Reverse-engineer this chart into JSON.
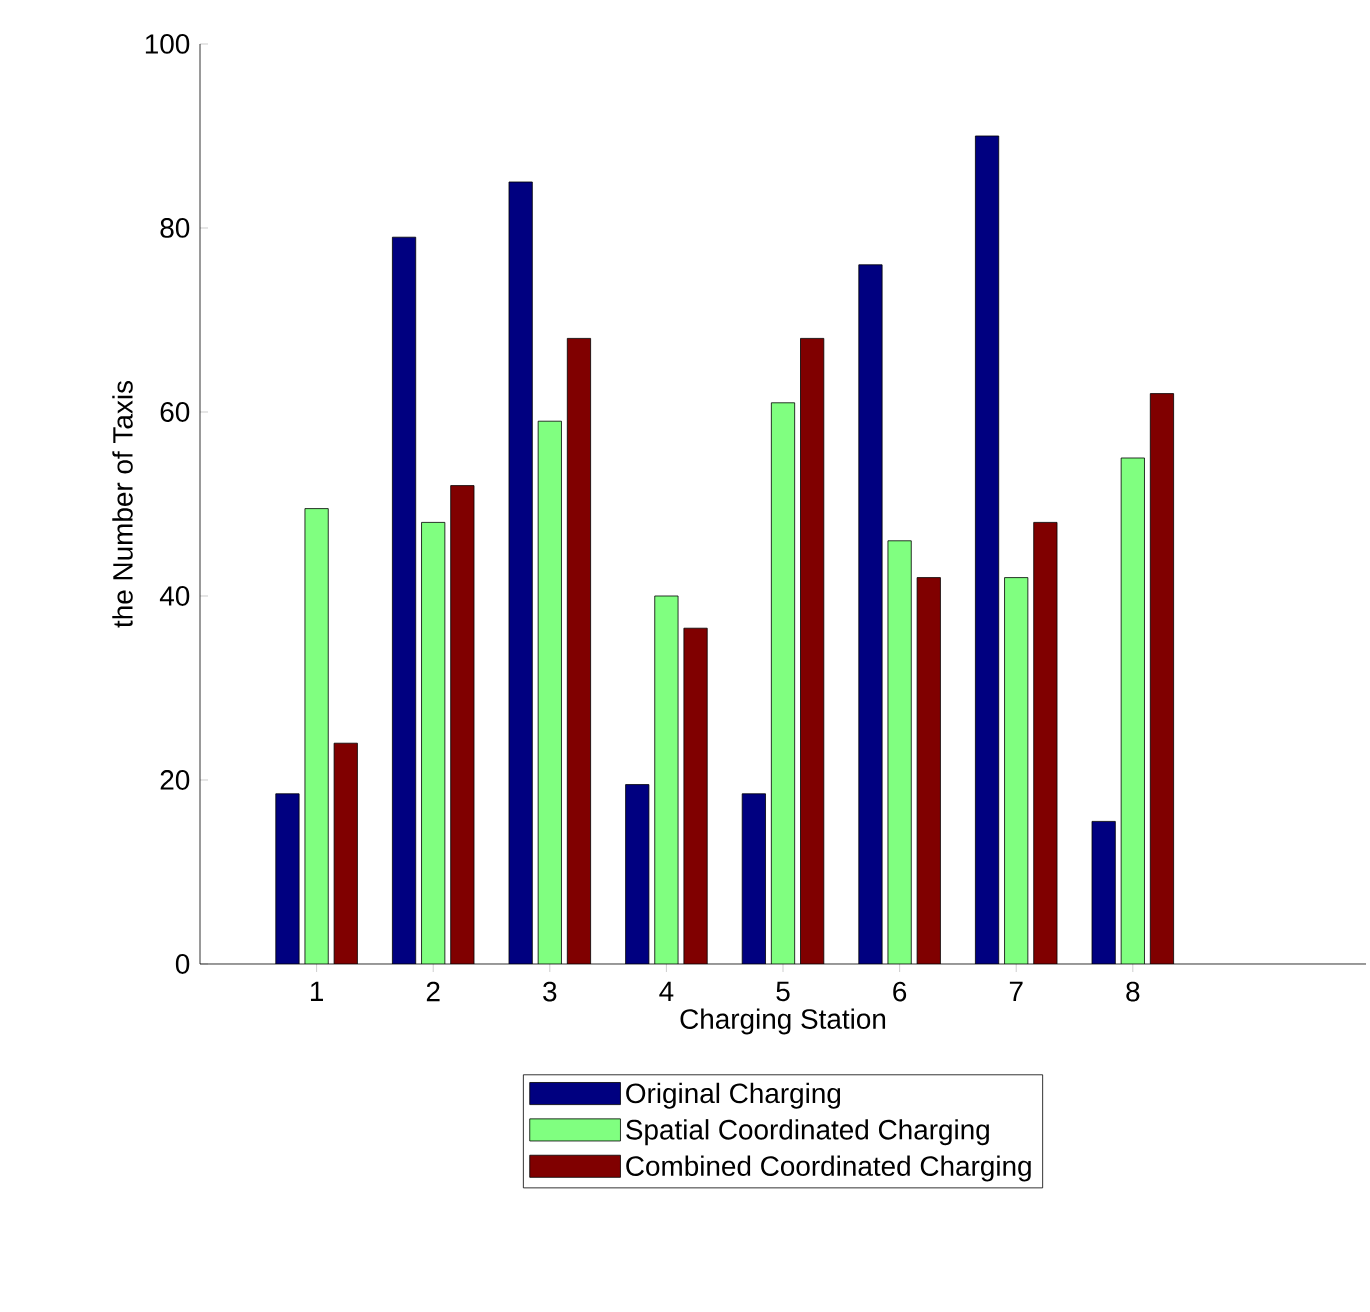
{
  "chart_data": {
    "type": "bar",
    "xlabel": "Charging Station",
    "ylabel": "the Number of Taxis",
    "x": [
      1,
      2,
      3,
      4,
      5,
      6,
      7,
      8
    ],
    "xlim": [
      0,
      10
    ],
    "xticks": [
      1,
      2,
      3,
      4,
      5,
      6,
      7,
      8
    ],
    "ylim": [
      0,
      100
    ],
    "yticks": [
      0,
      20,
      40,
      60,
      80,
      100
    ],
    "series": [
      {
        "name": "Original Charging",
        "color": "#000080",
        "values": [
          18.5,
          79,
          85,
          19.5,
          18.5,
          76,
          90,
          15.5
        ]
      },
      {
        "name": "Spatial Coordinated Charging",
        "color": "#80ff80",
        "values": [
          49.5,
          48,
          59,
          40,
          61,
          46,
          42,
          55
        ]
      },
      {
        "name": "Combined Coordinated Charging",
        "color": "#800000",
        "values": [
          24,
          52,
          68,
          36.5,
          68,
          42,
          48,
          62
        ]
      }
    ],
    "legend": "bottom"
  }
}
